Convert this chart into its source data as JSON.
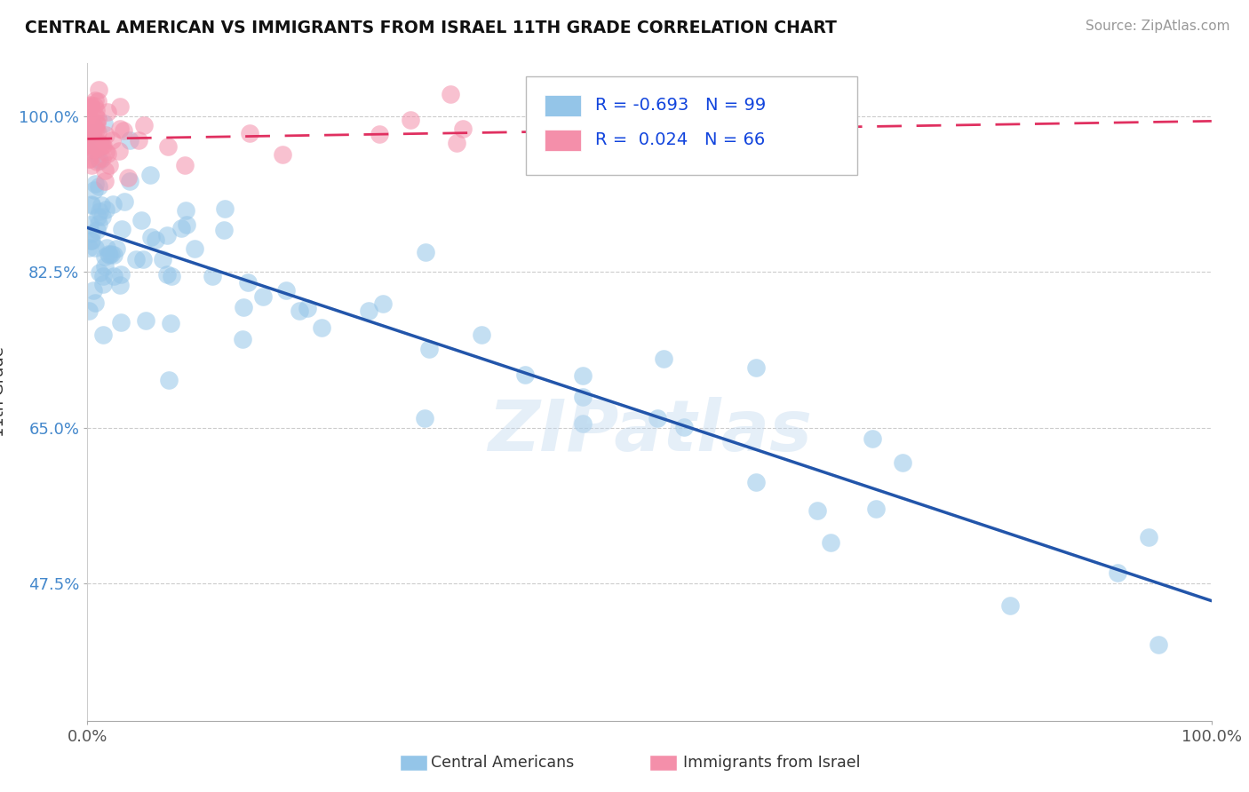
{
  "title": "CENTRAL AMERICAN VS IMMIGRANTS FROM ISRAEL 11TH GRADE CORRELATION CHART",
  "source": "Source: ZipAtlas.com",
  "ylabel": "11th Grade",
  "xlim": [
    0.0,
    1.0
  ],
  "ylim": [
    0.32,
    1.06
  ],
  "xticks": [
    0.0,
    1.0
  ],
  "xticklabels": [
    "0.0%",
    "100.0%"
  ],
  "yticks": [
    0.475,
    0.65,
    0.825,
    1.0
  ],
  "yticklabels": [
    "47.5%",
    "65.0%",
    "82.5%",
    "100.0%"
  ],
  "blue_R": "-0.693",
  "blue_N": "99",
  "pink_R": "0.024",
  "pink_N": "66",
  "legend_labels": [
    "Central Americans",
    "Immigrants from Israel"
  ],
  "blue_color": "#94C5E8",
  "pink_color": "#F48FAA",
  "blue_line_color": "#2255AA",
  "pink_line_color": "#E03060",
  "watermark": "ZipAtlas",
  "blue_line_x0": 0.0,
  "blue_line_y0": 0.875,
  "blue_line_x1": 1.0,
  "blue_line_y1": 0.455,
  "pink_line_x0": 0.0,
  "pink_line_y0": 0.975,
  "pink_line_x1": 1.0,
  "pink_line_y1": 0.995
}
